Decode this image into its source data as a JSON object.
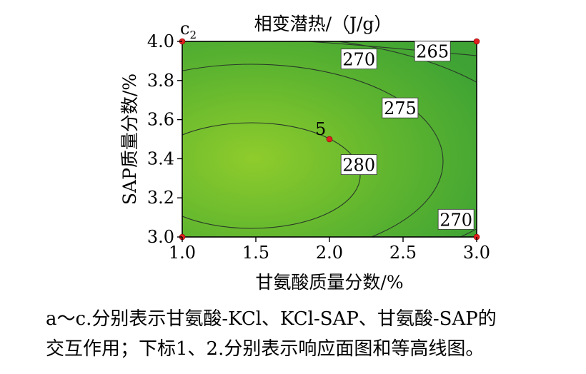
{
  "chart_data": {
    "type": "contour",
    "title": "相变潜热/（J/g）",
    "panel_label": "c",
    "panel_label_sub": "2",
    "xlabel": "甘氨酸质量分数/%",
    "ylabel": "SAP质量分数/%",
    "xlim": [
      1.0,
      3.0
    ],
    "ylim": [
      3.0,
      4.0
    ],
    "xticks": [
      "1.0",
      "1.5",
      "2.0",
      "2.5",
      "3.0"
    ],
    "yticks": [
      "3.0",
      "3.2",
      "3.4",
      "3.6",
      "3.8",
      "4.0"
    ],
    "contour_levels": [
      265,
      270,
      275,
      280
    ],
    "contour_labels": [
      {
        "text": "265",
        "x": 2.7,
        "y": 3.95
      },
      {
        "text": "270",
        "x": 2.2,
        "y": 3.91
      },
      {
        "text": "275",
        "x": 2.48,
        "y": 3.66
      },
      {
        "text": "280",
        "x": 2.2,
        "y": 3.37
      },
      {
        "text": "270",
        "x": 2.86,
        "y": 3.09
      }
    ],
    "design_points": [
      {
        "x": 1.0,
        "y": 4.0
      },
      {
        "x": 3.0,
        "y": 4.0
      },
      {
        "x": 1.0,
        "y": 3.0
      },
      {
        "x": 3.0,
        "y": 3.0
      },
      {
        "x": 2.0,
        "y": 3.5,
        "label": "5"
      }
    ],
    "fill_color_high": "#8fcc2c",
    "fill_color_low": "#3ea334",
    "point_color": "#e02020"
  },
  "caption": {
    "line1": "a～c.分别表示甘氨酸-KCl、KCl-SAP、甘氨酸-SAP的",
    "line2": "交互作用；下标1、2.分别表示响应面图和等高线图。"
  }
}
